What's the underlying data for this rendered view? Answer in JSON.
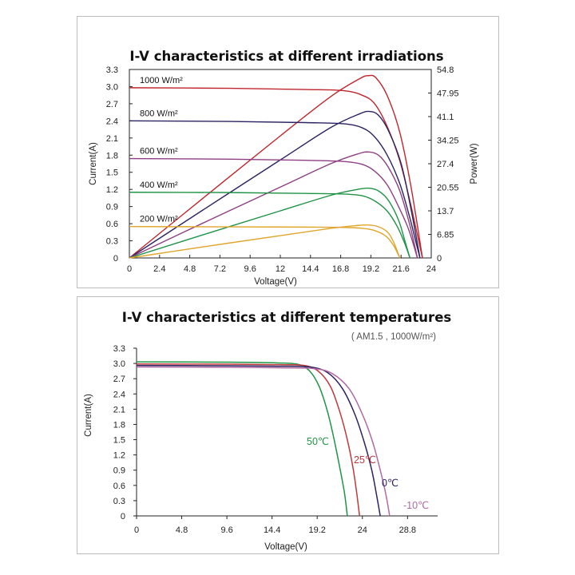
{
  "colors": {
    "c1000": "#c0262d",
    "c800": "#2b2462",
    "c600": "#8e3f83",
    "c400": "#1f9447",
    "c200": "#e0a52b",
    "t50": "#1f9447",
    "t25": "#c0393b",
    "t0": "#2b2462",
    "tm10": "#b06aa3"
  },
  "chart_data": [
    {
      "type": "line",
      "title": "I-V characteristics at different irradiations",
      "xlabel": "Voltage(V)",
      "ylabel": "Current(A)",
      "y2label": "Power(W)",
      "xlim": [
        0,
        24
      ],
      "ylim": [
        0,
        3.3
      ],
      "y2lim": [
        0,
        54.8
      ],
      "x_ticks": [
        "0",
        "2.4",
        "4.8",
        "7.2",
        "9.6",
        "12",
        "14.4",
        "16.8",
        "19.2",
        "21.6",
        "24"
      ],
      "y_ticks": [
        "0",
        "0.3",
        "0.6",
        "0.9",
        "1.2",
        "1.5",
        "1.8",
        "2.1",
        "2.4",
        "2.7",
        "3.0",
        "3.3"
      ],
      "y2_ticks": [
        "0",
        "6.85",
        "13.7",
        "20.55",
        "27.4",
        "34.25",
        "41.1",
        "47.95",
        "54.8"
      ],
      "grid": false,
      "series": [
        {
          "name": "1000 W/m²",
          "color_key": "c1000",
          "iv": [
            [
              0,
              2.98
            ],
            [
              8,
              2.97
            ],
            [
              14,
              2.95
            ],
            [
              17,
              2.93
            ],
            [
              18.5,
              2.85
            ],
            [
              19.5,
              2.7
            ],
            [
              20.5,
              2.3
            ],
            [
              21.5,
              1.7
            ],
            [
              22.3,
              1.0
            ],
            [
              22.8,
              0.5
            ],
            [
              23.3,
              0
            ]
          ],
          "pv": [
            [
              0,
              0
            ],
            [
              6,
              17.8
            ],
            [
              12,
              35.5
            ],
            [
              16,
              46.9
            ],
            [
              18.3,
              52.1
            ],
            [
              19.0,
              53.0
            ],
            [
              19.6,
              52.4
            ],
            [
              20.5,
              47.2
            ],
            [
              21.5,
              36.5
            ],
            [
              22.4,
              20.5
            ],
            [
              23.3,
              0
            ]
          ]
        },
        {
          "name": "800 W/m²",
          "color_key": "c800",
          "iv": [
            [
              0,
              2.4
            ],
            [
              8,
              2.39
            ],
            [
              14,
              2.37
            ],
            [
              17,
              2.35
            ],
            [
              18.5,
              2.28
            ],
            [
              19.5,
              2.12
            ],
            [
              20.5,
              1.8
            ],
            [
              21.5,
              1.3
            ],
            [
              22.3,
              0.7
            ],
            [
              22.7,
              0.35
            ],
            [
              23.1,
              0
            ]
          ],
          "pv": [
            [
              0,
              0
            ],
            [
              6,
              14.3
            ],
            [
              12,
              28.5
            ],
            [
              16,
              37.9
            ],
            [
              18.3,
              41.9
            ],
            [
              19.1,
              42.6
            ],
            [
              19.8,
              41.5
            ],
            [
              20.6,
              37.0
            ],
            [
              21.6,
              27.5
            ],
            [
              22.4,
              14.0
            ],
            [
              23.1,
              0
            ]
          ]
        },
        {
          "name": "600 W/m²",
          "color_key": "c600",
          "iv": [
            [
              0,
              1.74
            ],
            [
              8,
              1.73
            ],
            [
              14,
              1.71
            ],
            [
              17,
              1.69
            ],
            [
              18.5,
              1.64
            ],
            [
              19.5,
              1.52
            ],
            [
              20.5,
              1.28
            ],
            [
              21.4,
              0.9
            ],
            [
              22.2,
              0.5
            ],
            [
              22.9,
              0
            ]
          ],
          "pv": [
            [
              0,
              0
            ],
            [
              6,
              10.4
            ],
            [
              12,
              20.6
            ],
            [
              16,
              27.4
            ],
            [
              18.2,
              30.3
            ],
            [
              19.0,
              30.8
            ],
            [
              19.8,
              29.9
            ],
            [
              20.6,
              26.3
            ],
            [
              21.5,
              19.5
            ],
            [
              22.3,
              9.5
            ],
            [
              22.9,
              0
            ]
          ]
        },
        {
          "name": "400 W/m²",
          "color_key": "c400",
          "iv": [
            [
              0,
              1.15
            ],
            [
              8,
              1.145
            ],
            [
              14,
              1.13
            ],
            [
              17,
              1.12
            ],
            [
              18.5,
              1.09
            ],
            [
              19.5,
              1.0
            ],
            [
              20.5,
              0.82
            ],
            [
              21.3,
              0.55
            ],
            [
              21.9,
              0.25
            ],
            [
              22.3,
              0
            ]
          ],
          "pv": [
            [
              0,
              0
            ],
            [
              6,
              6.9
            ],
            [
              12,
              13.7
            ],
            [
              16,
              18.2
            ],
            [
              18.1,
              19.9
            ],
            [
              19.0,
              20.3
            ],
            [
              19.8,
              19.5
            ],
            [
              20.6,
              16.7
            ],
            [
              21.4,
              11.0
            ],
            [
              21.9,
              5.0
            ],
            [
              22.3,
              0
            ]
          ]
        },
        {
          "name": "200 W/m²",
          "color_key": "c200",
          "iv": [
            [
              0,
              0.55
            ],
            [
              8,
              0.545
            ],
            [
              14,
              0.54
            ],
            [
              17,
              0.535
            ],
            [
              18.5,
              0.52
            ],
            [
              19.5,
              0.48
            ],
            [
              20.4,
              0.38
            ],
            [
              21.0,
              0.22
            ],
            [
              21.5,
              0
            ]
          ],
          "pv": [
            [
              0,
              0
            ],
            [
              6,
              3.3
            ],
            [
              12,
              6.5
            ],
            [
              16,
              8.6
            ],
            [
              18.0,
              9.4
            ],
            [
              18.9,
              9.6
            ],
            [
              19.7,
              9.2
            ],
            [
              20.5,
              7.6
            ],
            [
              21.0,
              4.7
            ],
            [
              21.5,
              0
            ]
          ]
        }
      ]
    },
    {
      "type": "line",
      "title": "I-V characteristics at different temperatures",
      "subtitle": "( AM1.5 , 1000W/m²)",
      "xlabel": "Voltage(V)",
      "ylabel": "Current(A)",
      "xlim": [
        0,
        32
      ],
      "ylim": [
        0,
        3.3
      ],
      "x_ticks": [
        "0",
        "4.8",
        "9.6",
        "14.4",
        "19.2",
        "24",
        "28.8"
      ],
      "y_ticks": [
        "0",
        "0.3",
        "0.6",
        "0.9",
        "1.2",
        "1.5",
        "1.8",
        "2.1",
        "2.4",
        "2.7",
        "3.0",
        "3.3"
      ],
      "grid": false,
      "series": [
        {
          "name": "50℃",
          "color_key": "t50",
          "points": [
            [
              0,
              3.03
            ],
            [
              10,
              3.025
            ],
            [
              15,
              3.01
            ],
            [
              17.2,
              2.98
            ],
            [
              18.4,
              2.85
            ],
            [
              19.4,
              2.55
            ],
            [
              20.3,
              2.05
            ],
            [
              21.0,
              1.5
            ],
            [
              21.6,
              0.95
            ],
            [
              22.1,
              0.45
            ],
            [
              22.4,
              0
            ]
          ]
        },
        {
          "name": "25℃",
          "color_key": "t25",
          "points": [
            [
              0,
              2.99
            ],
            [
              10,
              2.985
            ],
            [
              15,
              2.975
            ],
            [
              17.8,
              2.96
            ],
            [
              19.3,
              2.85
            ],
            [
              20.6,
              2.55
            ],
            [
              21.6,
              2.05
            ],
            [
              22.4,
              1.5
            ],
            [
              23.0,
              0.95
            ],
            [
              23.4,
              0.45
            ],
            [
              23.7,
              0
            ]
          ]
        },
        {
          "name": "0℃",
          "color_key": "t0",
          "points": [
            [
              0,
              2.96
            ],
            [
              10,
              2.955
            ],
            [
              15,
              2.945
            ],
            [
              18.4,
              2.93
            ],
            [
              20.3,
              2.82
            ],
            [
              21.9,
              2.5
            ],
            [
              23.2,
              2.0
            ],
            [
              24.2,
              1.45
            ],
            [
              25.0,
              0.9
            ],
            [
              25.5,
              0.42
            ],
            [
              25.9,
              0
            ]
          ]
        },
        {
          "name": "-10℃",
          "color_key": "tm10",
          "points": [
            [
              0,
              2.93
            ],
            [
              10,
              2.925
            ],
            [
              15,
              2.915
            ],
            [
              18.8,
              2.9
            ],
            [
              20.8,
              2.8
            ],
            [
              22.6,
              2.5
            ],
            [
              24.0,
              2.0
            ],
            [
              25.1,
              1.45
            ],
            [
              25.9,
              0.9
            ],
            [
              26.5,
              0.42
            ],
            [
              26.9,
              0
            ]
          ]
        }
      ]
    }
  ]
}
